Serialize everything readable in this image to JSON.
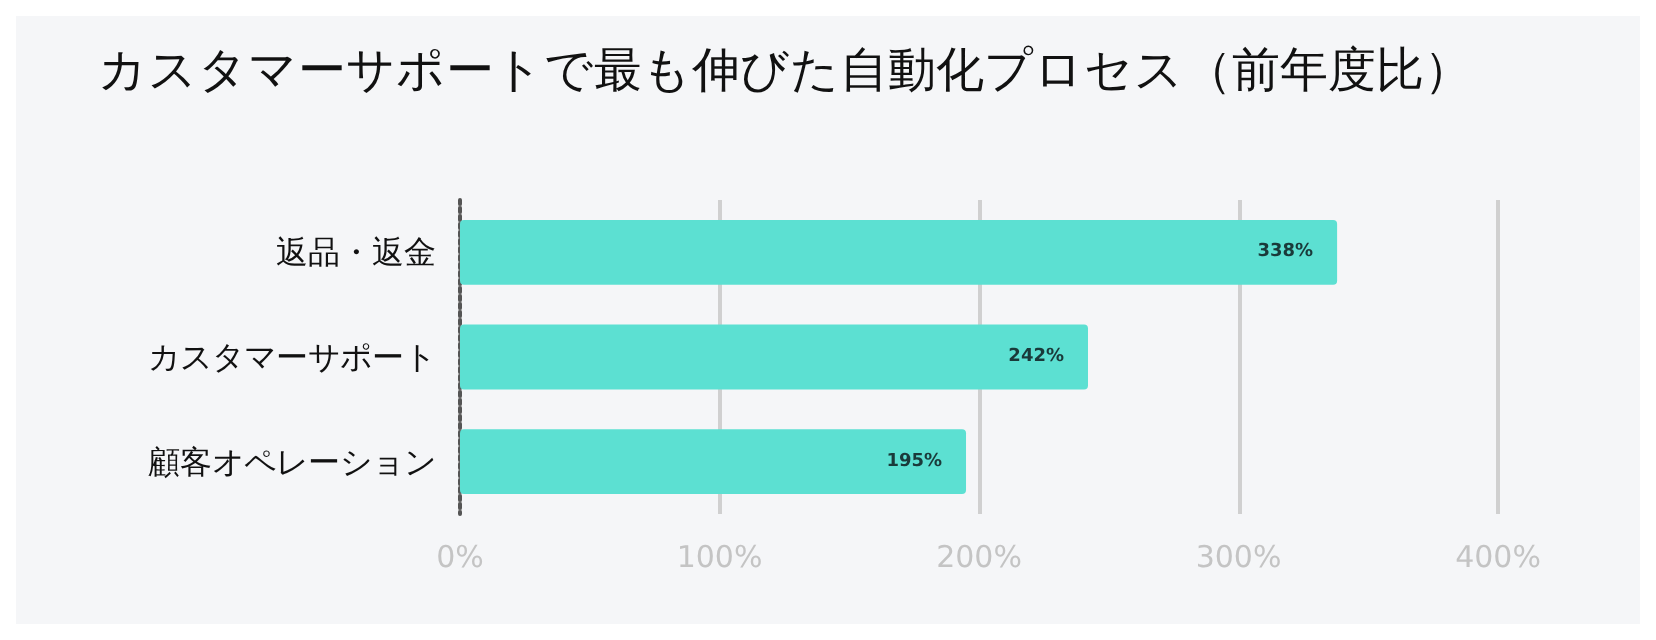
{
  "chart_data": {
    "type": "bar",
    "orientation": "horizontal",
    "title": "カスタマーサポートで最も伸びた自動化プロセス（前年度比）",
    "categories": [
      "返品・返金",
      "カスタマーサポート",
      "顧客オペレーション"
    ],
    "values": [
      338,
      242,
      195
    ],
    "color": "#5ce0d2",
    "value_labels": [
      "338%",
      "242%",
      "195%"
    ],
    "xlim": [
      0,
      400
    ],
    "xticks": [
      {
        "value": 0,
        "label": "0%"
      },
      {
        "value": 100,
        "label": "100%"
      },
      {
        "value": 200,
        "label": "200%"
      },
      {
        "value": 300,
        "label": "300%"
      },
      {
        "value": 400,
        "label": "400%"
      }
    ],
    "grid": "x"
  }
}
